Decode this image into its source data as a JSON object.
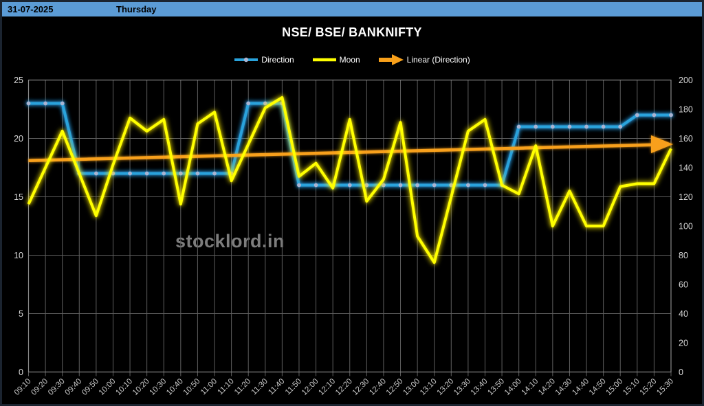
{
  "header": {
    "date": "31-07-2025",
    "day": "Thursday"
  },
  "title": "NSE/ BSE/ BANKNIFTY",
  "watermark": "stocklord.in",
  "legend": [
    {
      "label": "Direction"
    },
    {
      "label": "Moon"
    },
    {
      "label": "Linear (Direction)"
    }
  ],
  "colors": {
    "header_bg": "#5b9bd5",
    "direction": "#29a3dc",
    "direction_marker": "#a9b4d2",
    "moon": "#ffff00",
    "trend": "#f8a01a",
    "grid": "#5f5f5f",
    "plot_border": "#8a8a8a",
    "axis_text": "#d9d9d9",
    "x_axis_text": "#c8c8c8",
    "title_text": "#ffffff",
    "watermark_text": "#7d7d7d"
  },
  "chart_data": {
    "type": "line",
    "title": "NSE/ BSE/ BANKNIFTY",
    "grid": true,
    "legend_position": "top",
    "categories": [
      "09:10",
      "09:20",
      "09:30",
      "09:40",
      "09:50",
      "10:00",
      "10:10",
      "10:20",
      "10:30",
      "10:40",
      "10:50",
      "11:00",
      "11:10",
      "11:20",
      "11:30",
      "11:40",
      "11:50",
      "12:00",
      "12:10",
      "12:20",
      "12:30",
      "12:40",
      "12:50",
      "13:00",
      "13:10",
      "13:20",
      "13:30",
      "13:40",
      "13:50",
      "14:00",
      "14:10",
      "14:20",
      "14:30",
      "14:40",
      "14:50",
      "15:00",
      "15:10",
      "15:20",
      "15:30"
    ],
    "left_axis": {
      "min": 0,
      "max": 25,
      "ticks": [
        0,
        5,
        10,
        15,
        20,
        25
      ]
    },
    "right_axis": {
      "min": 0,
      "max": 200,
      "ticks": [
        0,
        20,
        40,
        60,
        80,
        100,
        120,
        140,
        160,
        180,
        200
      ]
    },
    "series": [
      {
        "name": "Direction",
        "axis": "left",
        "values": [
          23,
          23,
          23,
          17,
          17,
          17,
          17,
          17,
          17,
          17,
          17,
          17,
          17,
          23,
          23,
          23,
          16,
          16,
          16,
          16,
          16,
          16,
          16,
          16,
          16,
          16,
          16,
          16,
          16,
          21,
          21,
          21,
          21,
          21,
          21,
          21,
          22,
          22,
          22
        ]
      },
      {
        "name": "Moon",
        "axis": "right",
        "values": [
          115,
          140,
          165,
          136,
          107,
          142,
          174,
          165,
          173,
          115,
          170,
          178,
          131,
          156,
          181,
          188,
          134,
          143,
          126,
          173,
          117,
          132,
          171,
          93,
          75,
          120,
          165,
          173,
          128,
          122,
          155,
          100,
          124,
          100,
          100,
          127,
          129,
          129,
          153
        ]
      }
    ],
    "trendline": {
      "name": "Linear (Direction)",
      "axis": "left",
      "start": 18.1,
      "end": 19.5
    }
  }
}
